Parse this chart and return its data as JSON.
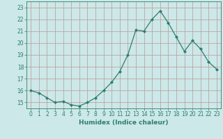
{
  "x": [
    0,
    1,
    2,
    3,
    4,
    5,
    6,
    7,
    8,
    9,
    10,
    11,
    12,
    13,
    14,
    15,
    16,
    17,
    18,
    19,
    20,
    21,
    22,
    23
  ],
  "y": [
    16.0,
    15.8,
    15.4,
    15.0,
    15.1,
    14.8,
    14.7,
    15.0,
    15.4,
    16.0,
    16.7,
    17.6,
    19.0,
    21.1,
    21.0,
    22.0,
    22.7,
    21.7,
    20.5,
    19.3,
    20.2,
    19.5,
    18.4,
    17.8
  ],
  "line_color": "#2e7d6e",
  "marker": "D",
  "marker_size": 2.0,
  "bg_color": "#cce8e8",
  "grid_color": "#b89898",
  "xlabel": "Humidex (Indice chaleur)",
  "xlim": [
    -0.5,
    23.5
  ],
  "ylim": [
    14.5,
    23.5
  ],
  "yticks": [
    15,
    16,
    17,
    18,
    19,
    20,
    21,
    22,
    23
  ],
  "xticks": [
    0,
    1,
    2,
    3,
    4,
    5,
    6,
    7,
    8,
    9,
    10,
    11,
    12,
    13,
    14,
    15,
    16,
    17,
    18,
    19,
    20,
    21,
    22,
    23
  ],
  "xlabel_fontsize": 6.5,
  "tick_fontsize": 5.5
}
